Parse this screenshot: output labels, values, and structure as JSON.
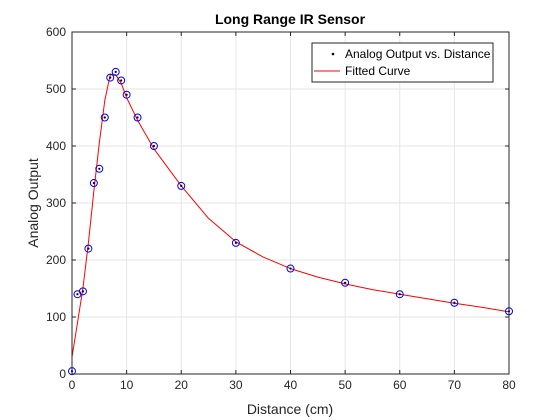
{
  "chart_data": {
    "type": "scatter",
    "title": "Long Range IR Sensor",
    "xlabel": "Distance (cm)",
    "ylabel": "Analog Output",
    "xlim": [
      0,
      80
    ],
    "ylim": [
      0,
      600
    ],
    "xticks": [
      0,
      10,
      20,
      30,
      40,
      50,
      60,
      70,
      80
    ],
    "yticks": [
      0,
      100,
      200,
      300,
      400,
      500,
      600
    ],
    "grid": true,
    "legend_position": "top-right",
    "colors": {
      "data_marker": "#0000ff",
      "data_point": "#000000",
      "fit_line": "#ff0000",
      "grid": "#e6e6e6",
      "axis": "#262626"
    },
    "series": [
      {
        "name": "Analog Output vs. Distance",
        "kind": "scatter",
        "x": [
          0,
          1,
          2,
          3,
          4,
          5,
          6,
          7,
          8,
          9,
          10,
          12,
          15,
          20,
          30,
          40,
          50,
          60,
          70,
          80
        ],
        "y": [
          5,
          140,
          145,
          220,
          335,
          360,
          450,
          520,
          530,
          515,
          490,
          450,
          400,
          330,
          230,
          185,
          160,
          140,
          125,
          110
        ]
      },
      {
        "name": "Fitted Curve",
        "kind": "line",
        "x": [
          0,
          1,
          2,
          3,
          4,
          5,
          6,
          7,
          8,
          9,
          10,
          12,
          15,
          20,
          25,
          30,
          35,
          40,
          45,
          50,
          55,
          60,
          65,
          70,
          75,
          80
        ],
        "y": [
          30,
          90,
          150,
          230,
          320,
          405,
          480,
          525,
          525,
          510,
          485,
          445,
          395,
          330,
          273,
          232,
          205,
          185,
          170,
          158,
          148,
          140,
          132,
          124,
          117,
          109
        ]
      }
    ]
  }
}
